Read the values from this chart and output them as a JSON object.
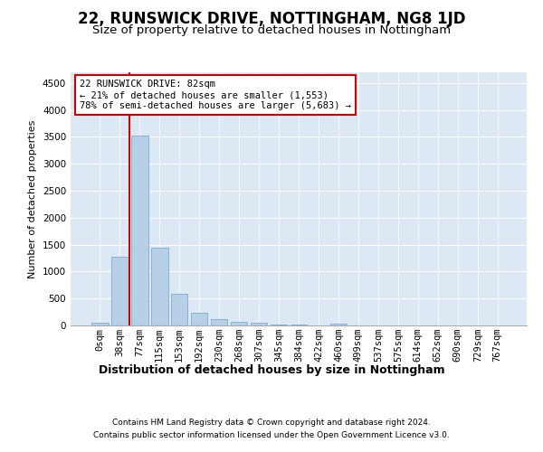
{
  "title1": "22, RUNSWICK DRIVE, NOTTINGHAM, NG8 1JD",
  "title2": "Size of property relative to detached houses in Nottingham",
  "xlabel": "Distribution of detached houses by size in Nottingham",
  "ylabel": "Number of detached properties",
  "bar_labels": [
    "0sqm",
    "38sqm",
    "77sqm",
    "115sqm",
    "153sqm",
    "192sqm",
    "230sqm",
    "268sqm",
    "307sqm",
    "345sqm",
    "384sqm",
    "422sqm",
    "460sqm",
    "499sqm",
    "537sqm",
    "575sqm",
    "614sqm",
    "652sqm",
    "690sqm",
    "729sqm",
    "767sqm"
  ],
  "bar_values": [
    50,
    1270,
    3530,
    1450,
    580,
    230,
    120,
    70,
    45,
    25,
    10,
    5,
    40,
    5,
    0,
    0,
    0,
    0,
    0,
    0,
    0
  ],
  "bar_color": "#b8cfe8",
  "bar_edge_color": "#7aadd4",
  "vline_x_index": 2,
  "vline_color": "#cc0000",
  "annotation_text": "22 RUNSWICK DRIVE: 82sqm\n← 21% of detached houses are smaller (1,553)\n78% of semi-detached houses are larger (5,683) →",
  "annotation_box_facecolor": "#ffffff",
  "annotation_box_edgecolor": "#cc0000",
  "ylim": [
    0,
    4700
  ],
  "yticks": [
    0,
    500,
    1000,
    1500,
    2000,
    2500,
    3000,
    3500,
    4000,
    4500
  ],
  "background_color": "#ffffff",
  "plot_bg_color": "#dce9f5",
  "footer_line1": "Contains HM Land Registry data © Crown copyright and database right 2024.",
  "footer_line2": "Contains public sector information licensed under the Open Government Licence v3.0.",
  "title1_fontsize": 12,
  "title2_fontsize": 9.5,
  "xlabel_fontsize": 9,
  "ylabel_fontsize": 8,
  "tick_fontsize": 7.5,
  "annot_fontsize": 7.5,
  "footer_fontsize": 6.5
}
